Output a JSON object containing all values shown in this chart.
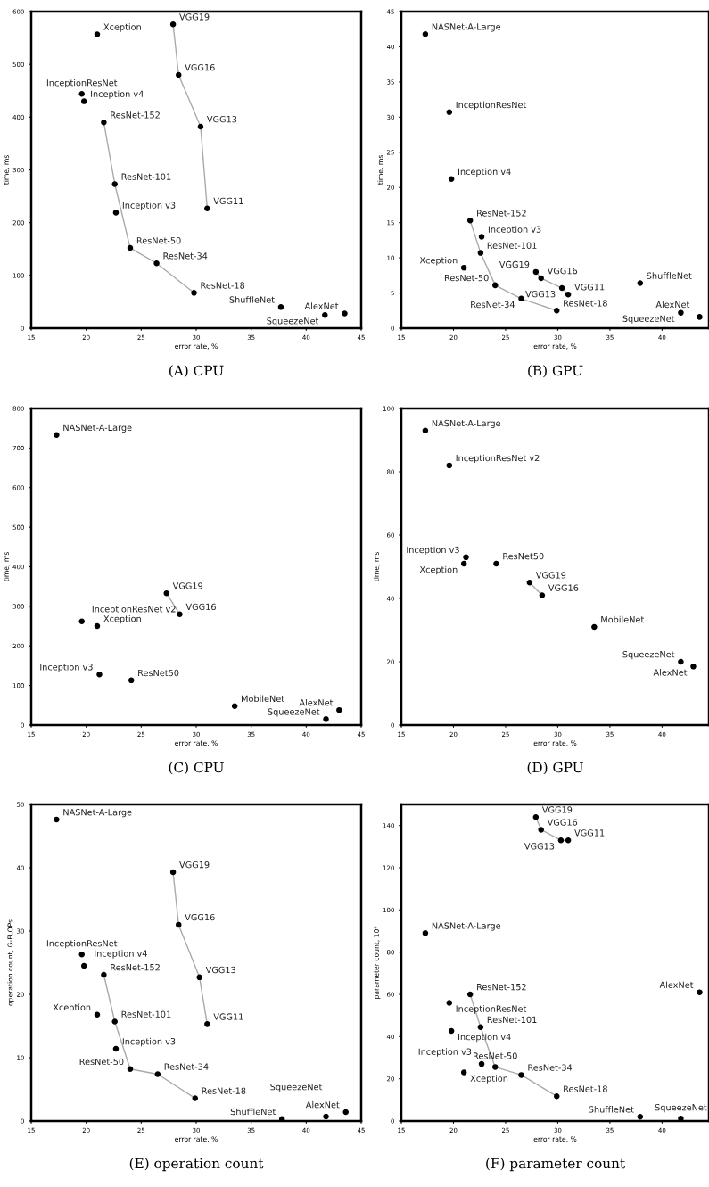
{
  "chart_data": [
    {
      "type": "scatter",
      "title": "(A) CPU",
      "xlabel": "error rate, %",
      "ylabel": "time, ms",
      "xlim": [
        15,
        45
      ],
      "xticks": [
        15,
        20,
        25,
        30,
        35,
        40,
        45
      ],
      "ylim": [
        0,
        600
      ],
      "yticks": [
        0,
        100,
        200,
        300,
        400,
        500,
        600
      ],
      "series": [
        {
          "type": "line",
          "color": "#aaaaaa",
          "x": [
            21.6,
            22.6,
            24.0,
            26.4,
            29.8
          ],
          "values": [
            390,
            273,
            152,
            123,
            67
          ]
        },
        {
          "type": "line",
          "color": "#aaaaaa",
          "x": [
            27.9,
            28.4,
            30.4,
            31.0
          ],
          "values": [
            576,
            480,
            382,
            227
          ]
        },
        {
          "type": "scatter",
          "marker": "circle",
          "color": "#000000",
          "x": [
            21.0,
            27.9,
            28.4,
            30.4,
            31.0,
            19.6,
            19.8,
            21.6,
            22.6,
            22.7,
            24.0,
            26.4,
            29.8,
            37.7,
            41.7,
            43.5
          ],
          "values": [
            557,
            576,
            480,
            382,
            227,
            444,
            430,
            390,
            273,
            219,
            152,
            123,
            67,
            40,
            25,
            28
          ]
        }
      ],
      "annotations": [
        {
          "text": "Xception",
          "x": 21.0,
          "y": 557
        },
        {
          "text": "VGG19",
          "x": 27.9,
          "y": 576
        },
        {
          "text": "VGG16",
          "x": 28.4,
          "y": 480
        },
        {
          "text": "VGG13",
          "x": 30.4,
          "y": 382
        },
        {
          "text": "VGG11",
          "x": 31.0,
          "y": 227
        },
        {
          "text": "InceptionResNet",
          "x": 19.6,
          "y": 444
        },
        {
          "text": "Inception v4",
          "x": 19.8,
          "y": 430
        },
        {
          "text": "ResNet-152",
          "x": 21.6,
          "y": 390
        },
        {
          "text": "ResNet-101",
          "x": 22.6,
          "y": 273
        },
        {
          "text": "Inception v3",
          "x": 22.7,
          "y": 219
        },
        {
          "text": "ResNet-50",
          "x": 24.0,
          "y": 152
        },
        {
          "text": "ResNet-34",
          "x": 26.4,
          "y": 123
        },
        {
          "text": "ResNet-18",
          "x": 29.8,
          "y": 67
        },
        {
          "text": "ShuffleNet",
          "x": 37.7,
          "y": 40
        },
        {
          "text": "SqueezeNet",
          "x": 41.7,
          "y": 25
        },
        {
          "text": "AlexNet",
          "x": 43.5,
          "y": 28
        }
      ]
    },
    {
      "type": "scatter",
      "title": "(B) GPU",
      "xlabel": "error rate, %",
      "ylabel": "time, ms",
      "xlim": [
        15,
        44.5
      ],
      "xticks": [
        15,
        20,
        25,
        30,
        35,
        40
      ],
      "ylim": [
        0,
        45
      ],
      "yticks": [
        0,
        5,
        10,
        15,
        20,
        25,
        30,
        35,
        40,
        45
      ],
      "series": [
        {
          "type": "line",
          "color": "#aaaaaa",
          "x": [
            21.6,
            22.6,
            24.0,
            26.5,
            29.9
          ],
          "values": [
            15.3,
            10.7,
            6.1,
            4.2,
            2.5
          ]
        },
        {
          "type": "line",
          "color": "#aaaaaa",
          "x": [
            27.9,
            28.4,
            30.4,
            31.0
          ],
          "values": [
            8.0,
            7.1,
            5.7,
            4.8
          ]
        },
        {
          "type": "scatter",
          "marker": "circle",
          "color": "#000000",
          "x": [
            17.3,
            19.6,
            19.8,
            21.6,
            22.7,
            22.6,
            21.0,
            27.9,
            28.4,
            30.4,
            31.0,
            24.0,
            26.5,
            29.9,
            37.9,
            41.8,
            43.6
          ],
          "values": [
            41.8,
            30.7,
            21.2,
            15.3,
            13.0,
            10.7,
            8.6,
            8.0,
            7.1,
            5.7,
            4.8,
            6.1,
            4.2,
            2.5,
            6.4,
            2.2,
            1.6
          ]
        }
      ],
      "annotations": [
        {
          "text": "NASNet-A-Large",
          "x": 17.3,
          "y": 41.8
        },
        {
          "text": "InceptionResNet",
          "x": 19.6,
          "y": 30.7
        },
        {
          "text": "Inception v4",
          "x": 19.8,
          "y": 21.2
        },
        {
          "text": "ResNet-152",
          "x": 21.6,
          "y": 15.3
        },
        {
          "text": "Inception v3",
          "x": 22.7,
          "y": 13.0
        },
        {
          "text": "ResNet-101",
          "x": 22.6,
          "y": 10.7
        },
        {
          "text": "Xception",
          "x": 21.0,
          "y": 8.6
        },
        {
          "text": "VGG19",
          "x": 27.9,
          "y": 8.0
        },
        {
          "text": "VGG16",
          "x": 28.4,
          "y": 7.1
        },
        {
          "text": "VGG13",
          "x": 30.4,
          "y": 5.7
        },
        {
          "text": "VGG11",
          "x": 31.0,
          "y": 4.8
        },
        {
          "text": "ResNet-50",
          "x": 24.0,
          "y": 6.1
        },
        {
          "text": "ResNet-34",
          "x": 26.5,
          "y": 4.2
        },
        {
          "text": "ResNet-18",
          "x": 29.9,
          "y": 2.5
        },
        {
          "text": "ShuffleNet",
          "x": 37.9,
          "y": 6.4
        },
        {
          "text": "SqueezeNet",
          "x": 41.8,
          "y": 2.2
        },
        {
          "text": "AlexNet",
          "x": 43.6,
          "y": 1.6
        }
      ]
    },
    {
      "type": "scatter",
      "title": "(C) CPU",
      "xlabel": "error rate, %",
      "ylabel": "time, ms",
      "xlim": [
        15,
        45
      ],
      "xticks": [
        15,
        20,
        25,
        30,
        35,
        40,
        45
      ],
      "ylim": [
        0,
        800
      ],
      "yticks": [
        0,
        100,
        200,
        300,
        400,
        500,
        600,
        700,
        800
      ],
      "series": [
        {
          "type": "line",
          "color": "#aaaaaa",
          "x": [
            27.3,
            28.5
          ],
          "values": [
            333,
            280
          ]
        },
        {
          "type": "scatter",
          "marker": "circle",
          "color": "#000000",
          "x": [
            17.3,
            27.3,
            28.5,
            19.6,
            21.0,
            21.2,
            24.1,
            33.5,
            43.0,
            41.8
          ],
          "values": [
            733,
            333,
            280,
            262,
            250,
            128,
            113,
            48,
            38,
            15
          ]
        }
      ],
      "annotations": [
        {
          "text": "NASNet-A-Large",
          "x": 17.3,
          "y": 733
        },
        {
          "text": "VGG19",
          "x": 27.3,
          "y": 333
        },
        {
          "text": "VGG16",
          "x": 28.5,
          "y": 280
        },
        {
          "text": "InceptionResNet v2",
          "x": 19.6,
          "y": 262
        },
        {
          "text": "Xception",
          "x": 21.0,
          "y": 250
        },
        {
          "text": "Inception v3",
          "x": 21.2,
          "y": 128
        },
        {
          "text": "ResNet50",
          "x": 24.1,
          "y": 113
        },
        {
          "text": "MobileNet",
          "x": 33.5,
          "y": 48
        },
        {
          "text": "AlexNet",
          "x": 43.0,
          "y": 38
        },
        {
          "text": "SqueezeNet",
          "x": 41.8,
          "y": 15
        }
      ]
    },
    {
      "type": "scatter",
      "title": "(D) GPU",
      "xlabel": "error rate, %",
      "ylabel": "time, ms",
      "xlim": [
        15,
        44.5
      ],
      "xticks": [
        15,
        20,
        25,
        30,
        35,
        40
      ],
      "ylim": [
        0,
        100
      ],
      "yticks": [
        0,
        20,
        40,
        60,
        80,
        100
      ],
      "series": [
        {
          "type": "line",
          "color": "#aaaaaa",
          "x": [
            27.3,
            28.5
          ],
          "values": [
            45,
            41
          ]
        },
        {
          "type": "scatter",
          "marker": "circle",
          "color": "#000000",
          "x": [
            17.3,
            19.6,
            21.2,
            21.0,
            24.1,
            27.3,
            28.5,
            33.5,
            41.8,
            43.0
          ],
          "values": [
            93,
            82,
            53,
            51,
            51,
            45,
            41,
            31,
            20,
            18.5
          ]
        }
      ],
      "annotations": [
        {
          "text": "NASNet-A-Large",
          "x": 17.3,
          "y": 93
        },
        {
          "text": "InceptionResNet v2",
          "x": 19.6,
          "y": 82
        },
        {
          "text": "Inception v3",
          "x": 21.2,
          "y": 53
        },
        {
          "text": "Xception",
          "x": 21.0,
          "y": 51
        },
        {
          "text": "ResNet50",
          "x": 24.1,
          "y": 51
        },
        {
          "text": "VGG19",
          "x": 27.3,
          "y": 45
        },
        {
          "text": "VGG16",
          "x": 28.5,
          "y": 41
        },
        {
          "text": "MobileNet",
          "x": 33.5,
          "y": 31
        },
        {
          "text": "SqueezeNet",
          "x": 41.8,
          "y": 20
        },
        {
          "text": "AlexNet",
          "x": 43.0,
          "y": 18.5
        }
      ]
    },
    {
      "type": "scatter",
      "title": "(E) operation count",
      "xlabel": "error rate, %",
      "ylabel": "operation count, G-FLOPs",
      "xlim": [
        15,
        45
      ],
      "xticks": [
        15,
        20,
        25,
        30,
        35,
        40,
        45
      ],
      "ylim": [
        0,
        50
      ],
      "yticks": [
        0,
        10,
        20,
        30,
        40,
        50
      ],
      "series": [
        {
          "type": "line",
          "color": "#aaaaaa",
          "x": [
            21.6,
            22.6,
            24.0,
            26.5,
            29.9
          ],
          "values": [
            23.1,
            15.7,
            8.2,
            7.4,
            3.6
          ]
        },
        {
          "type": "line",
          "color": "#aaaaaa",
          "x": [
            27.9,
            28.4,
            30.3,
            31.0
          ],
          "values": [
            39.3,
            31.0,
            22.7,
            15.3
          ]
        },
        {
          "type": "scatter",
          "marker": "circle",
          "color": "#000000",
          "x": [
            17.3,
            27.9,
            28.4,
            30.3,
            31.0,
            19.6,
            19.8,
            21.6,
            21.0,
            22.6,
            22.7,
            24.0,
            26.5,
            29.9,
            37.8,
            41.8,
            43.6
          ],
          "values": [
            47.6,
            39.3,
            31.0,
            22.7,
            15.3,
            26.3,
            24.5,
            23.1,
            16.8,
            15.7,
            11.4,
            8.2,
            7.4,
            3.6,
            0.3,
            0.7,
            1.4
          ]
        }
      ],
      "annotations": [
        {
          "text": "NASNet-A-Large",
          "x": 17.3,
          "y": 47.6
        },
        {
          "text": "VGG19",
          "x": 27.9,
          "y": 39.3
        },
        {
          "text": "VGG16",
          "x": 28.4,
          "y": 31.0
        },
        {
          "text": "VGG13",
          "x": 30.3,
          "y": 22.7
        },
        {
          "text": "VGG11",
          "x": 31.0,
          "y": 15.3
        },
        {
          "text": "InceptionResNet",
          "x": 19.6,
          "y": 26.3
        },
        {
          "text": "Inception v4",
          "x": 19.8,
          "y": 24.5
        },
        {
          "text": "ResNet-152",
          "x": 21.6,
          "y": 23.1
        },
        {
          "text": "Xception",
          "x": 21.0,
          "y": 16.8
        },
        {
          "text": "ResNet-101",
          "x": 22.6,
          "y": 15.7
        },
        {
          "text": "Inception v3",
          "x": 22.7,
          "y": 11.4
        },
        {
          "text": "ResNet-50",
          "x": 24.0,
          "y": 8.2
        },
        {
          "text": "ResNet-34",
          "x": 26.5,
          "y": 7.4
        },
        {
          "text": "ResNet-18",
          "x": 29.9,
          "y": 3.6
        },
        {
          "text": "ShuffleNet",
          "x": 37.8,
          "y": 0.3
        },
        {
          "text": "SqueezeNet",
          "x": 41.8,
          "y": 0.7
        },
        {
          "text": "AlexNet",
          "x": 43.6,
          "y": 1.4
        }
      ]
    },
    {
      "type": "scatter",
      "title": "(F) parameter count",
      "xlabel": "error rate, %",
      "ylabel": "parameter count, 10⁶",
      "xlim": [
        15,
        44.5
      ],
      "xticks": [
        15,
        20,
        25,
        30,
        35,
        40
      ],
      "ylim": [
        0,
        150
      ],
      "yticks": [
        0,
        20,
        40,
        60,
        80,
        100,
        120,
        140
      ],
      "series": [
        {
          "type": "line",
          "color": "#aaaaaa",
          "x": [
            21.6,
            22.6,
            24.0,
            26.5,
            29.9
          ],
          "values": [
            60,
            44.5,
            25.6,
            21.8,
            11.7
          ]
        },
        {
          "type": "line",
          "color": "#aaaaaa",
          "x": [
            27.9,
            28.4,
            30.3,
            31.0
          ],
          "values": [
            144,
            138,
            133,
            133
          ]
        },
        {
          "type": "scatter",
          "marker": "circle",
          "color": "#000000",
          "x": [
            27.9,
            28.4,
            30.3,
            31.0,
            17.3,
            21.6,
            19.6,
            22.6,
            19.8,
            22.7,
            21.0,
            24.0,
            26.5,
            29.9,
            37.9,
            41.8,
            43.6
          ],
          "values": [
            144,
            138,
            133,
            133,
            89,
            60,
            56,
            44.5,
            42.7,
            27,
            23,
            25.6,
            21.8,
            11.7,
            2,
            1.2,
            61
          ]
        }
      ],
      "annotations": [
        {
          "text": "VGG19",
          "x": 27.9,
          "y": 144
        },
        {
          "text": "VGG16",
          "x": 28.4,
          "y": 138
        },
        {
          "text": "VGG13",
          "x": 30.3,
          "y": 133
        },
        {
          "text": "VGG11",
          "x": 31.0,
          "y": 133
        },
        {
          "text": "NASNet-A-Large",
          "x": 17.3,
          "y": 89
        },
        {
          "text": "ResNet-152",
          "x": 21.6,
          "y": 60
        },
        {
          "text": "InceptionResNet",
          "x": 19.6,
          "y": 56
        },
        {
          "text": "ResNet-101",
          "x": 22.6,
          "y": 44.5
        },
        {
          "text": "Inception v4",
          "x": 19.8,
          "y": 42.7
        },
        {
          "text": "Inception v3",
          "x": 22.7,
          "y": 27
        },
        {
          "text": "Xception",
          "x": 21.0,
          "y": 23
        },
        {
          "text": "ResNet-50",
          "x": 24.0,
          "y": 25.6
        },
        {
          "text": "ResNet-34",
          "x": 26.5,
          "y": 21.8
        },
        {
          "text": "ResNet-18",
          "x": 29.9,
          "y": 11.7
        },
        {
          "text": "ShuffleNet",
          "x": 37.9,
          "y": 2
        },
        {
          "text": "SqueezeNet",
          "x": 41.8,
          "y": 1.2
        },
        {
          "text": "AlexNet",
          "x": 43.6,
          "y": 61
        }
      ]
    }
  ]
}
